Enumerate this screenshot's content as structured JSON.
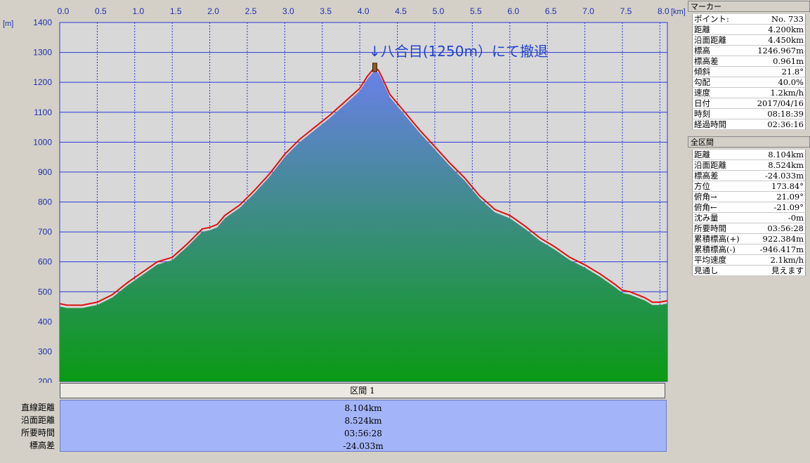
{
  "chart_data": {
    "type": "area",
    "x_unit": "[km]",
    "y_unit": "[m]",
    "xlim": [
      0,
      8.1
    ],
    "ylim": [
      200,
      1400
    ],
    "x_ticks": [
      0,
      0.5,
      1,
      1.5,
      2,
      2.5,
      3,
      3.5,
      4,
      4.5,
      5,
      5.5,
      6,
      6.5,
      7,
      7.5,
      8
    ],
    "x_tick_labels": [
      "0.0",
      "0.5",
      "1.0",
      "1.5",
      "2.0",
      "2.5",
      "3.0",
      "3.5",
      "4.0",
      "4.5",
      "5.0",
      "5.5",
      "6.0",
      "6.5",
      "7.0",
      "7.5",
      "8.0"
    ],
    "y_ticks": [
      200,
      300,
      400,
      500,
      600,
      700,
      800,
      900,
      1000,
      1100,
      1200,
      1300,
      1400
    ],
    "y_tick_labels": [
      "200",
      "300",
      "400",
      "500",
      "600",
      "700",
      "800",
      "900",
      "1000",
      "1100",
      "1200",
      "1300",
      "1400"
    ],
    "annotation": "↓八合目(1250m）にて撤退",
    "annotation_point": {
      "x": 4.2,
      "y": 1250
    },
    "grid": true,
    "colors": {
      "plot_bg": "#d8d8d8",
      "grid": "#2b3bd6",
      "fill_top": "#6a80e8",
      "fill_bottom": "#0a9a14",
      "track": "#e01010"
    },
    "series": [
      {
        "x": [
          0,
          0.1,
          0.2,
          0.3,
          0.4,
          0.5,
          0.7,
          0.9,
          1.1,
          1.3,
          1.5,
          1.7,
          1.9,
          2.0,
          2.1,
          2.2,
          2.4,
          2.6,
          2.8,
          3.0,
          3.2,
          3.4,
          3.6,
          3.8,
          4.0,
          4.1,
          4.2,
          4.25,
          4.3,
          4.4,
          4.6,
          4.8,
          5.0,
          5.2,
          5.4,
          5.6,
          5.8,
          5.9,
          6.0,
          6.2,
          6.4,
          6.6,
          6.8,
          7.0,
          7.2,
          7.4,
          7.5,
          7.6,
          7.8,
          7.9,
          8.0,
          8.1
        ],
        "y": [
          460,
          455,
          455,
          455,
          460,
          465,
          490,
          530,
          565,
          600,
          615,
          660,
          710,
          715,
          725,
          755,
          790,
          840,
          895,
          960,
          1010,
          1050,
          1090,
          1135,
          1180,
          1220,
          1250,
          1240,
          1215,
          1160,
          1100,
          1040,
          985,
          930,
          880,
          820,
          775,
          765,
          755,
          720,
          680,
          650,
          615,
          590,
          560,
          525,
          505,
          500,
          480,
          465,
          465,
          470
        ]
      }
    ]
  },
  "section": {
    "header": "区間 1",
    "labels": [
      "直線距離",
      "沿面距離",
      "所要時間",
      "標高差"
    ],
    "values": [
      "8.104km",
      "8.524km",
      "03:56:28",
      "-24.033m"
    ]
  },
  "marker_panel": {
    "title": "マーカー",
    "rows": [
      {
        "label": "ポイント:",
        "value": "No. 733"
      },
      {
        "label": "距離",
        "value": "4.200km"
      },
      {
        "label": "沿面距離",
        "value": "4.450km"
      },
      {
        "label": "標高",
        "value": "1246.967m"
      },
      {
        "label": "標高差",
        "value": "0.961m"
      },
      {
        "label": "傾斜",
        "value": "21.8°"
      },
      {
        "label": "勾配",
        "value": "40.0%"
      },
      {
        "label": "速度",
        "value": "1.2km/h"
      },
      {
        "label": "日付",
        "value": "2017/04/16"
      },
      {
        "label": "時刻",
        "value": "08:18:39"
      },
      {
        "label": "経過時間",
        "value": "02:36:16"
      }
    ]
  },
  "total_panel": {
    "title": "全区間",
    "rows": [
      {
        "label": "距離",
        "value": "8.104km"
      },
      {
        "label": "沿面距離",
        "value": "8.524km"
      },
      {
        "label": "標高差",
        "value": "-24.033m"
      },
      {
        "label": "方位",
        "value": "173.84°"
      },
      {
        "label": "俯角→",
        "value": "21.09°"
      },
      {
        "label": "俯角←",
        "value": "-21.09°"
      },
      {
        "label": "沈み量",
        "value": "-0m"
      },
      {
        "label": "所要時間",
        "value": "03:56:28"
      },
      {
        "label": "累積標高(+)",
        "value": "922.384m"
      },
      {
        "label": "累積標高(-)",
        "value": "-946.417m"
      },
      {
        "label": "平均速度",
        "value": "2.1km/h"
      },
      {
        "label": "見通し",
        "value": "見えます"
      }
    ]
  }
}
